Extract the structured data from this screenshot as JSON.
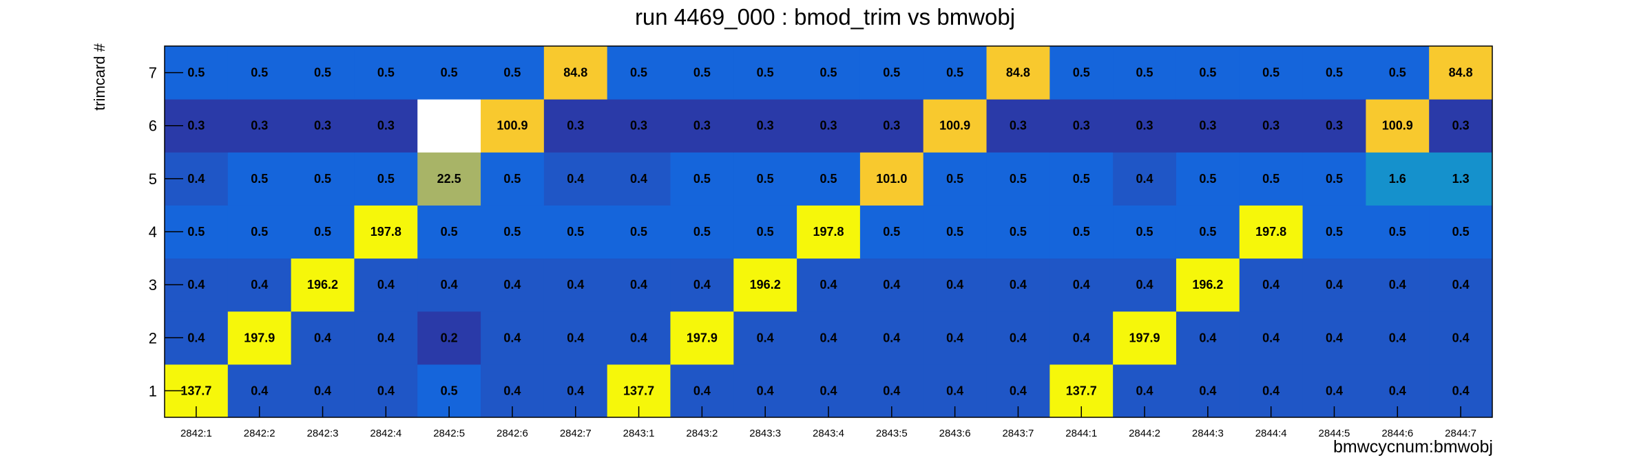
{
  "chart_data": {
    "type": "heatmap",
    "title": "run 4469_000 : bmod_trim vs bmwobj",
    "xlabel": "bmwcycnum:bmwobj",
    "ylabel": "trimcard #",
    "x": [
      "2842:1",
      "2842:2",
      "2842:3",
      "2842:4",
      "2842:5",
      "2842:6",
      "2842:7",
      "2843:1",
      "2843:2",
      "2843:3",
      "2843:4",
      "2843:5",
      "2843:6",
      "2843:7",
      "2844:1",
      "2844:2",
      "2844:3",
      "2844:4",
      "2844:5",
      "2844:6",
      "2844:7"
    ],
    "y": [
      "1",
      "2",
      "3",
      "4",
      "5",
      "6",
      "7"
    ],
    "values": [
      [
        137.7,
        0.4,
        0.4,
        0.4,
        0.5,
        0.4,
        0.4,
        137.7,
        0.4,
        0.4,
        0.4,
        0.4,
        0.4,
        0.4,
        137.7,
        0.4,
        0.4,
        0.4,
        0.4,
        0.4,
        0.4
      ],
      [
        0.4,
        197.9,
        0.4,
        0.4,
        0.2,
        0.4,
        0.4,
        0.4,
        197.9,
        0.4,
        0.4,
        0.4,
        0.4,
        0.4,
        0.4,
        197.9,
        0.4,
        0.4,
        0.4,
        0.4,
        0.4
      ],
      [
        0.4,
        0.4,
        196.2,
        0.4,
        0.4,
        0.4,
        0.4,
        0.4,
        0.4,
        196.2,
        0.4,
        0.4,
        0.4,
        0.4,
        0.4,
        0.4,
        196.2,
        0.4,
        0.4,
        0.4,
        0.4
      ],
      [
        0.5,
        0.5,
        0.5,
        197.8,
        0.5,
        0.5,
        0.5,
        0.5,
        0.5,
        0.5,
        197.8,
        0.5,
        0.5,
        0.5,
        0.5,
        0.5,
        0.5,
        197.8,
        0.5,
        0.5,
        0.5
      ],
      [
        0.4,
        0.5,
        0.5,
        0.5,
        22.5,
        0.5,
        0.4,
        0.4,
        0.5,
        0.5,
        0.5,
        101.0,
        0.5,
        0.5,
        0.5,
        0.4,
        0.5,
        0.5,
        0.5,
        1.6,
        1.3
      ],
      [
        0.3,
        0.3,
        0.3,
        0.3,
        null,
        100.9,
        0.3,
        0.3,
        0.3,
        0.3,
        0.3,
        0.3,
        100.9,
        0.3,
        0.3,
        0.3,
        0.3,
        0.3,
        0.3,
        100.9,
        0.3
      ],
      [
        0.5,
        0.5,
        0.5,
        0.5,
        0.5,
        0.5,
        84.8,
        0.5,
        0.5,
        0.5,
        0.5,
        0.5,
        0.5,
        84.8,
        0.5,
        0.5,
        0.5,
        0.5,
        0.5,
        0.5,
        84.8
      ]
    ],
    "colors": {
      "low_dark": "#2a3aa8",
      "low": "#1f56c6",
      "base": "#1565db",
      "mid_cyan": "#1591cc",
      "mid_olive": "#a8b467",
      "high_orange": "#f8c92e",
      "high_yellow": "#f6f70a",
      "empty": "#ffffff"
    },
    "grid": false,
    "legend": "none"
  }
}
